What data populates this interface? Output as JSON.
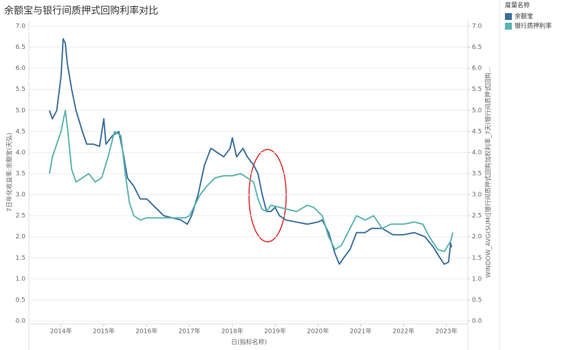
{
  "chart_data": {
    "type": "line",
    "title": "余额宝与银行间质押式回购利率对比",
    "x_label": "日(指标名称)",
    "y_label": "7日年化收益率:余额宝(天弘)",
    "y2_label": "WINDOW_AVG(SUM([银行间质押式回购加权利率_7天(银行间质押式回购...",
    "legend_title": "度量名称",
    "legend": "right",
    "grid": true,
    "xlim": [
      2013.25,
      2023.5
    ],
    "xticks": [
      {
        "value": 2014,
        "label": "2014年"
      },
      {
        "value": 2015,
        "label": "2015年"
      },
      {
        "value": 2016,
        "label": "2016年"
      },
      {
        "value": 2017,
        "label": "2017年"
      },
      {
        "value": 2018,
        "label": "2018年"
      },
      {
        "value": 2019,
        "label": "2019年"
      },
      {
        "value": 2020,
        "label": "2020年"
      },
      {
        "value": 2021,
        "label": "2021年"
      },
      {
        "value": 2022,
        "label": "2022年"
      },
      {
        "value": 2023,
        "label": "2023年"
      }
    ],
    "ylim": [
      0,
      7
    ],
    "y2lim": [
      0,
      7
    ],
    "yticks": [
      {
        "value": 0,
        "label": "0.0"
      },
      {
        "value": 0.5,
        "label": "0.5"
      },
      {
        "value": 1,
        "label": "1.0"
      },
      {
        "value": 1.5,
        "label": "1.5"
      },
      {
        "value": 2,
        "label": "2.0"
      },
      {
        "value": 2.5,
        "label": "2.5"
      },
      {
        "value": 3,
        "label": "3.0"
      },
      {
        "value": 3.5,
        "label": "3.5"
      },
      {
        "value": 4,
        "label": "4.0"
      },
      {
        "value": 4.5,
        "label": "4.5"
      },
      {
        "value": 5,
        "label": "5.0"
      },
      {
        "value": 5.5,
        "label": "5.5"
      },
      {
        "value": 6,
        "label": "6.0"
      },
      {
        "value": 6.5,
        "label": "6.5"
      },
      {
        "value": 7,
        "label": "7.0"
      }
    ],
    "y2ticks": [
      {
        "value": 0,
        "label": "0.0"
      },
      {
        "value": 0.5,
        "label": "0.5"
      },
      {
        "value": 1,
        "label": "1.0"
      },
      {
        "value": 1.5,
        "label": "1.5"
      },
      {
        "value": 2,
        "label": "2.0"
      },
      {
        "value": 2.5,
        "label": "2.5"
      },
      {
        "value": 3,
        "label": "3.0"
      },
      {
        "value": 3.5,
        "label": "3.5"
      },
      {
        "value": 4,
        "label": "4.0"
      },
      {
        "value": 4.5,
        "label": "4.5"
      },
      {
        "value": 5,
        "label": "5.0"
      },
      {
        "value": 5.5,
        "label": "5.5"
      },
      {
        "value": 6,
        "label": "6.0"
      },
      {
        "value": 6.5,
        "label": "6.5"
      },
      {
        "value": 7,
        "label": "7.0"
      }
    ],
    "series": [
      {
        "name": "余额宝",
        "color": "#3b6e9c",
        "x": [
          2013.73,
          2013.8,
          2013.9,
          2014.0,
          2014.05,
          2014.1,
          2014.15,
          2014.25,
          2014.35,
          2014.5,
          2014.6,
          2014.75,
          2014.9,
          2015.0,
          2015.05,
          2015.2,
          2015.35,
          2015.45,
          2015.55,
          2015.7,
          2015.85,
          2016.0,
          2016.2,
          2016.4,
          2016.6,
          2016.8,
          2016.95,
          2017.05,
          2017.2,
          2017.35,
          2017.5,
          2017.65,
          2017.8,
          2017.95,
          2018.0,
          2018.1,
          2018.25,
          2018.35,
          2018.5,
          2018.6,
          2018.7,
          2018.8,
          2018.9,
          2019.0,
          2019.1,
          2019.25,
          2019.5,
          2019.75,
          2020.0,
          2020.1,
          2020.25,
          2020.4,
          2020.5,
          2020.6,
          2020.75,
          2020.9,
          2021.1,
          2021.25,
          2021.5,
          2021.75,
          2022.0,
          2022.25,
          2022.5,
          2022.7,
          2022.85,
          2022.95,
          2023.05,
          2023.1,
          2023.12
        ],
        "values": [
          5.0,
          4.8,
          5.0,
          5.8,
          6.7,
          6.6,
          6.1,
          5.5,
          5.0,
          4.5,
          4.2,
          4.2,
          4.15,
          4.8,
          4.2,
          4.4,
          4.5,
          4.0,
          3.4,
          3.2,
          2.9,
          2.9,
          2.7,
          2.5,
          2.45,
          2.4,
          2.3,
          2.5,
          3.0,
          3.7,
          4.1,
          4.0,
          3.9,
          4.1,
          4.35,
          3.9,
          4.1,
          3.9,
          3.7,
          3.5,
          3.0,
          2.6,
          2.6,
          2.7,
          2.5,
          2.4,
          2.35,
          2.3,
          2.35,
          2.4,
          2.1,
          1.6,
          1.35,
          1.5,
          1.7,
          2.1,
          2.1,
          2.2,
          2.2,
          2.05,
          2.05,
          2.1,
          2.0,
          1.75,
          1.5,
          1.35,
          1.4,
          1.85,
          1.75
        ]
      },
      {
        "name": "银行质押利率",
        "color": "#5ab4b0",
        "axis": "y2",
        "x": [
          2013.73,
          2013.8,
          2013.9,
          2014.0,
          2014.1,
          2014.15,
          2014.25,
          2014.35,
          2014.5,
          2014.65,
          2014.8,
          2014.95,
          2015.1,
          2015.25,
          2015.4,
          2015.5,
          2015.6,
          2015.7,
          2015.85,
          2016.0,
          2016.3,
          2016.6,
          2016.9,
          2017.0,
          2017.1,
          2017.25,
          2017.4,
          2017.6,
          2017.8,
          2018.0,
          2018.2,
          2018.35,
          2018.5,
          2018.6,
          2018.7,
          2018.8,
          2018.9,
          2019.1,
          2019.3,
          2019.5,
          2019.75,
          2019.9,
          2020.1,
          2020.25,
          2020.4,
          2020.55,
          2020.7,
          2020.9,
          2021.1,
          2021.3,
          2021.5,
          2021.7,
          2022.0,
          2022.25,
          2022.45,
          2022.6,
          2022.8,
          2022.95,
          2023.1,
          2023.15
        ],
        "values": [
          3.5,
          3.9,
          4.2,
          4.5,
          5.0,
          4.6,
          3.6,
          3.3,
          3.4,
          3.5,
          3.3,
          3.4,
          3.9,
          4.5,
          4.4,
          3.5,
          2.8,
          2.5,
          2.4,
          2.45,
          2.45,
          2.45,
          2.45,
          2.5,
          2.7,
          3.0,
          3.2,
          3.4,
          3.45,
          3.45,
          3.5,
          3.4,
          3.3,
          2.9,
          2.65,
          2.6,
          2.75,
          2.7,
          2.65,
          2.6,
          2.75,
          2.7,
          2.5,
          2.0,
          1.7,
          1.8,
          2.1,
          2.5,
          2.4,
          2.5,
          2.2,
          2.3,
          2.3,
          2.35,
          2.3,
          2.0,
          1.7,
          1.65,
          1.9,
          2.1
        ]
      }
    ]
  }
}
